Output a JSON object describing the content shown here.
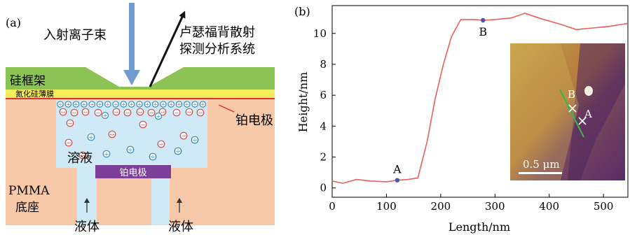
{
  "panel_a": {
    "label": "(a)",
    "ion_beam": "入射离子束",
    "rbs_line1": "卢瑟福背散射",
    "rbs_line2": "探测分析系统",
    "frame": "硅框架",
    "membrane": "氮化硅薄膜",
    "top_electrode": "铂电极",
    "solution": "溶液",
    "bottom_electrode": "铂电极",
    "base_line1": "PMMA",
    "base_line2": "底座",
    "liquid_left": "液体",
    "liquid_right": "液体",
    "plus_sign": "+",
    "minus_sign": "−",
    "colors": {
      "frame": "#8dc355",
      "membrane": "#f4ec59",
      "electrode_line": "#e0322b",
      "base": "#f7c9a9",
      "solution": "#cfe9f6",
      "bottom_electrode": "#7b3f9a",
      "beam": "#6e9bd0",
      "cation": "#3b8db8",
      "anion": "#d4504a"
    }
  },
  "panel_b": {
    "label": "(b)",
    "scale_bar": "0.5 μm",
    "afm_label_a": "A",
    "afm_label_b": "B"
  },
  "chart_data": {
    "type": "line",
    "xlabel": "Length/nm",
    "ylabel": "Height/nm",
    "xlim": [
      0,
      545
    ],
    "ylim": [
      -0.6,
      11.8
    ],
    "xticks": [
      0,
      100,
      200,
      300,
      400,
      500
    ],
    "yticks": [
      0,
      2,
      4,
      6,
      8,
      10
    ],
    "series": [
      {
        "color": "#e8605c",
        "x": [
          0,
          20,
          45,
          70,
          100,
          120,
          140,
          158,
          175,
          190,
          205,
          220,
          237,
          260,
          280,
          300,
          330,
          355,
          385,
          420,
          450,
          480,
          510,
          545
        ],
        "y": [
          0.45,
          0.3,
          0.55,
          0.45,
          0.4,
          0.5,
          0.55,
          0.65,
          3.0,
          5.8,
          8.0,
          9.8,
          10.9,
          10.9,
          10.85,
          10.9,
          11.0,
          11.3,
          10.95,
          10.6,
          10.25,
          10.35,
          10.45,
          10.65
        ]
      }
    ],
    "markers": [
      {
        "label": "A",
        "x": 120,
        "y": 0.5
      },
      {
        "label": "B",
        "x": 278,
        "y": 10.85
      }
    ]
  }
}
